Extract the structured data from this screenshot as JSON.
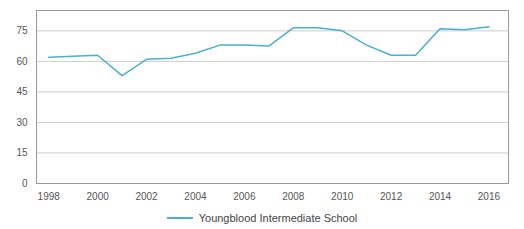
{
  "chart_data": {
    "type": "line",
    "x": [
      1998,
      1999,
      2000,
      2001,
      2002,
      2003,
      2004,
      2005,
      2006,
      2007,
      2008,
      2009,
      2010,
      2011,
      2012,
      2013,
      2014,
      2015,
      2016
    ],
    "series": [
      {
        "name": "Youngblood Intermediate School",
        "color": "#4bafd4",
        "values": [
          62,
          62.5,
          63,
          53,
          61,
          61.5,
          64,
          68,
          68,
          67.5,
          76.5,
          76.5,
          75,
          68,
          63,
          63,
          76,
          75.5,
          77
        ]
      }
    ],
    "xlim": [
      1997.5,
      2016.8
    ],
    "xticks": [
      1998,
      2000,
      2002,
      2004,
      2006,
      2008,
      2010,
      2012,
      2014,
      2016
    ],
    "ylim": [
      0,
      85
    ],
    "yticks": [
      0,
      15,
      30,
      45,
      60,
      75
    ],
    "grid": true,
    "legend": "bottom"
  }
}
